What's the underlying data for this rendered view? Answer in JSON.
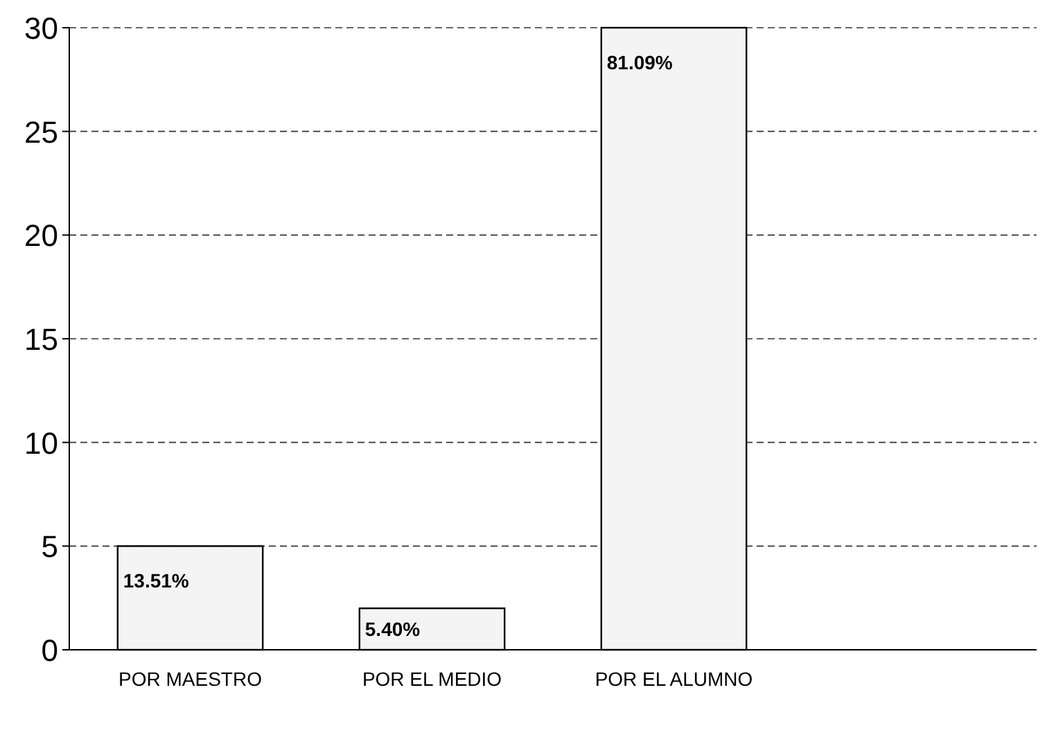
{
  "chart_data": {
    "type": "bar",
    "categories": [
      "POR MAESTRO",
      "POR EL MEDIO",
      "POR EL ALUMNO",
      null
    ],
    "values": [
      5,
      2,
      30,
      null
    ],
    "annotations": [
      {
        "text": "13.51%",
        "x": "POR MAESTRO",
        "y": 5
      },
      {
        "text": "5.40%",
        "x": "POR EL MEDIO",
        "y": 2
      },
      {
        "text": "81.09%",
        "x": "POR EL ALUMNO",
        "y": 30
      }
    ],
    "color": "#f4f4f4",
    "ylim": [
      0,
      30
    ],
    "yticks": [
      0,
      5,
      10,
      15,
      20,
      25,
      30
    ],
    "grid": "y"
  }
}
